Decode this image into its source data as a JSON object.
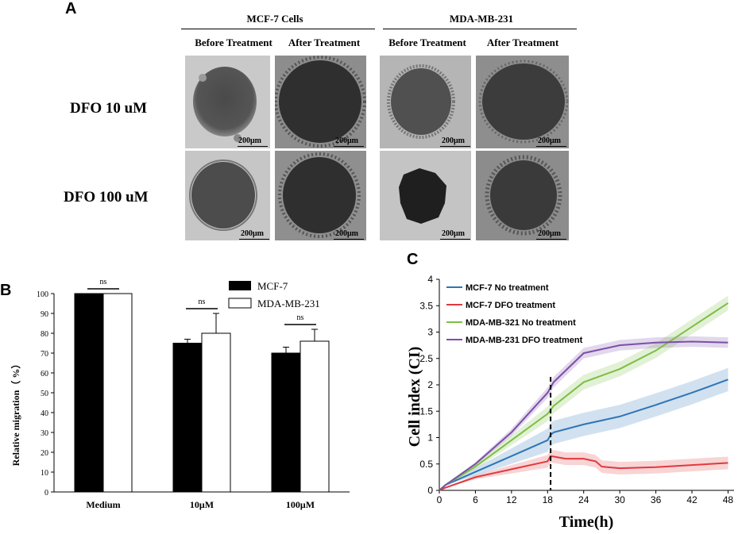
{
  "panel_a": {
    "letter": "A",
    "groups": [
      "MCF-7 Cells",
      "MDA-MB-231"
    ],
    "columns": [
      "Before Treatment",
      "After Treatment",
      "Before Treatment",
      "After Treatment"
    ],
    "rows": [
      "DFO 10 uM",
      "DFO 100 uM"
    ],
    "scale_bar": "200μm"
  },
  "chart_data": [
    {
      "id": "B",
      "type": "bar",
      "panel_letter": "B",
      "categories": [
        "Medium",
        "10μM",
        "100μM"
      ],
      "series": [
        {
          "name": "MCF-7",
          "color": "#000000",
          "values": [
            100,
            75,
            70
          ],
          "errors": [
            0,
            2,
            3
          ]
        },
        {
          "name": "MDA-MB-231",
          "color": "#ffffff",
          "values": [
            100,
            80,
            76
          ],
          "errors": [
            0,
            10,
            6
          ]
        }
      ],
      "significance": [
        "ns",
        "ns",
        "ns"
      ],
      "ylabel": "Relative migration（ %）",
      "xlabel": "",
      "ylim": [
        0,
        100
      ],
      "yticks": [
        0,
        10,
        20,
        30,
        40,
        50,
        60,
        70,
        80,
        90,
        100
      ]
    },
    {
      "id": "C",
      "type": "line",
      "panel_letter": "C",
      "xlabel": "Time(h)",
      "ylabel": "Cell index (CI)",
      "xlim": [
        0,
        49
      ],
      "ylim": [
        0,
        4
      ],
      "xticks": [
        0,
        6,
        12,
        18,
        24,
        30,
        36,
        42,
        48
      ],
      "yticks": [
        "0",
        "0.5",
        "1",
        "1.5",
        "2",
        "2.5",
        "3",
        "3.5",
        "4"
      ],
      "treatment_time": 18.5,
      "series": [
        {
          "name": "MCF-7   No treatment",
          "color": "#2e75b6",
          "band": 0.22,
          "points": [
            [
              0,
              0
            ],
            [
              1,
              0.1
            ],
            [
              6,
              0.35
            ],
            [
              12,
              0.65
            ],
            [
              18,
              0.95
            ],
            [
              18.5,
              1.05
            ],
            [
              19,
              1.1
            ],
            [
              24,
              1.25
            ],
            [
              30,
              1.4
            ],
            [
              36,
              1.62
            ],
            [
              42,
              1.85
            ],
            [
              48,
              2.1
            ]
          ]
        },
        {
          "name": "MCF-7   DFO treatment",
          "color": "#e0393e",
          "band": 0.12,
          "points": [
            [
              0,
              0
            ],
            [
              1,
              0.05
            ],
            [
              6,
              0.25
            ],
            [
              12,
              0.4
            ],
            [
              18,
              0.55
            ],
            [
              18.5,
              0.65
            ],
            [
              21,
              0.6
            ],
            [
              24,
              0.6
            ],
            [
              26,
              0.55
            ],
            [
              27,
              0.45
            ],
            [
              30,
              0.42
            ],
            [
              36,
              0.44
            ],
            [
              42,
              0.48
            ],
            [
              48,
              0.52
            ]
          ]
        },
        {
          "name": "MDA-MB-321 No treatment",
          "color": "#7cbf44",
          "band": 0.14,
          "points": [
            [
              0,
              0
            ],
            [
              1,
              0.1
            ],
            [
              6,
              0.45
            ],
            [
              12,
              0.95
            ],
            [
              18,
              1.45
            ],
            [
              19,
              1.6
            ],
            [
              24,
              2.05
            ],
            [
              30,
              2.3
            ],
            [
              36,
              2.65
            ],
            [
              42,
              3.1
            ],
            [
              48,
              3.55
            ]
          ]
        },
        {
          "name": "MDA-MB-231 DFO treatment",
          "color": "#7b4fa8",
          "band": 0.1,
          "points": [
            [
              0,
              0
            ],
            [
              1,
              0.1
            ],
            [
              6,
              0.5
            ],
            [
              12,
              1.1
            ],
            [
              18,
              1.85
            ],
            [
              19,
              2.05
            ],
            [
              24,
              2.6
            ],
            [
              30,
              2.75
            ],
            [
              36,
              2.8
            ],
            [
              42,
              2.82
            ],
            [
              48,
              2.8
            ]
          ]
        }
      ]
    }
  ]
}
